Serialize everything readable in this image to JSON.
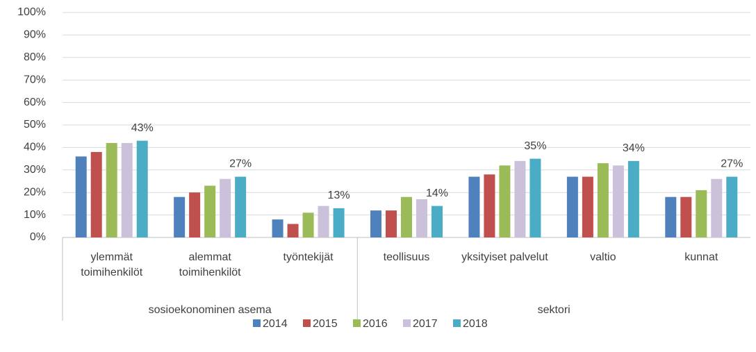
{
  "chart_data": {
    "type": "bar",
    "categories": [
      "ylemmät toimihenkilöt",
      "alemmat toimihenkilöt",
      "työntekijät",
      "teollisuus",
      "yksityiset palvelut",
      "valtio",
      "kunnat"
    ],
    "groups": [
      {
        "name": "sosioekonominen asema",
        "size": 3
      },
      {
        "name": "sektori",
        "size": 4
      }
    ],
    "series": [
      {
        "name": "2014",
        "color": "#4f81bd",
        "values": [
          36,
          18,
          8,
          12,
          27,
          27,
          18
        ]
      },
      {
        "name": "2015",
        "color": "#c0504d",
        "values": [
          38,
          20,
          6,
          12,
          28,
          27,
          18
        ]
      },
      {
        "name": "2016",
        "color": "#9bbb59",
        "values": [
          42,
          23,
          11,
          18,
          32,
          33,
          21
        ]
      },
      {
        "name": "2017",
        "color": "#ccc1da",
        "values": [
          42,
          26,
          14,
          17,
          34,
          32,
          26
        ]
      },
      {
        "name": "2018",
        "color": "#4bacc6",
        "values": [
          43,
          27,
          13,
          14,
          35,
          34,
          27
        ],
        "value_labels": [
          "43%",
          "27%",
          "13%",
          "14%",
          "35%",
          "34%",
          "27%"
        ]
      }
    ],
    "ylim": [
      0,
      100
    ],
    "yticks": [
      {
        "value": 0,
        "label": "0%"
      },
      {
        "value": 10,
        "label": "10%"
      },
      {
        "value": 20,
        "label": "20%"
      },
      {
        "value": 30,
        "label": "30%"
      },
      {
        "value": 40,
        "label": "40%"
      },
      {
        "value": 50,
        "label": "50%"
      },
      {
        "value": 60,
        "label": "60%"
      },
      {
        "value": 70,
        "label": "70%"
      },
      {
        "value": 80,
        "label": "80%"
      },
      {
        "value": 90,
        "label": "90%"
      },
      {
        "value": 100,
        "label": "100%"
      }
    ],
    "grid": true,
    "legend": "bottom"
  }
}
